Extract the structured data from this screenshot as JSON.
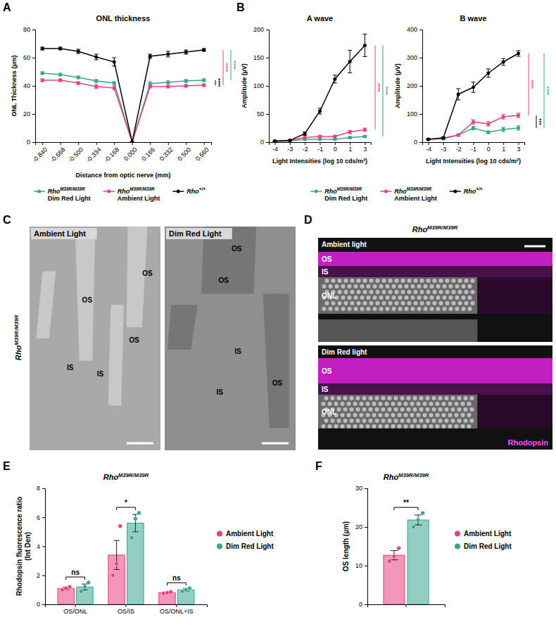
{
  "chart_data": [
    {
      "type": "line",
      "panel": "A",
      "title": "ONL thickness",
      "x_label": "Distance from optic nerve (mm)",
      "y_label": "ONL Thickness (µm)",
      "categories": [
        "-0.840",
        "-0.668",
        "-0.500",
        "-0.334",
        "-0.168",
        "0.000",
        "0.166",
        "0.332",
        "0.500",
        "0.660"
      ],
      "ylim": [
        0,
        80
      ],
      "yticks": [
        0,
        20,
        40,
        60,
        80
      ],
      "legend": "bottom",
      "series": [
        {
          "name": "RhoM39R/M39R Dim Red Light",
          "color": "#3aa58f",
          "marker": "circle",
          "values": [
            49,
            48,
            46,
            43.5,
            42,
            0,
            41.5,
            42.5,
            43.5,
            44
          ],
          "errors": [
            1,
            1,
            1,
            1,
            1,
            0,
            1.5,
            1,
            1,
            1
          ]
        },
        {
          "name": "RhoM39R/M39R Ambient Light",
          "color": "#e8417e",
          "marker": "circle",
          "values": [
            44,
            44,
            42,
            39.5,
            38.5,
            0,
            39.5,
            39.5,
            40,
            40.5
          ],
          "errors": [
            1,
            1,
            1,
            1.5,
            1.5,
            0,
            1,
            1,
            1,
            1
          ]
        },
        {
          "name": "Rho+/+",
          "color": "#000000",
          "marker": "circle",
          "values": [
            66.5,
            66.5,
            64.5,
            60.5,
            57,
            0,
            61,
            62.5,
            64,
            65.5
          ],
          "errors": [
            1,
            1,
            1.5,
            2,
            3,
            0,
            1.5,
            2,
            1.5,
            1
          ]
        }
      ],
      "significance": [
        "****",
        "****",
        "****"
      ]
    },
    {
      "type": "line",
      "panel": "B",
      "title": "A wave",
      "x_label": "Light Intensities (log 10 cds/m²)",
      "y_label": "Amplitude (µV)",
      "categories": [
        "-4",
        "-3",
        "-2",
        "-1",
        "0",
        "1",
        "3"
      ],
      "ylim": [
        0,
        200
      ],
      "yticks": [
        0,
        50,
        100,
        150,
        200
      ],
      "legend": "bottom",
      "series": [
        {
          "name": "RhoM39R/M39R Dim Red Light",
          "color": "#3aa58f",
          "marker": "circle",
          "values": [
            1,
            2,
            5,
            5,
            5,
            8,
            10
          ],
          "errors": [
            0.5,
            0.5,
            1,
            1,
            1,
            2,
            2
          ]
        },
        {
          "name": "RhoM39R/M39R Ambient Light",
          "color": "#e8417e",
          "marker": "circle",
          "values": [
            2,
            3,
            8,
            10,
            10,
            18,
            22
          ],
          "errors": [
            0.5,
            0.5,
            1,
            2,
            2,
            3,
            3
          ]
        },
        {
          "name": "Rho+/+",
          "color": "#000000",
          "marker": "circle",
          "values": [
            2,
            3,
            15,
            55,
            112,
            143,
            172
          ],
          "errors": [
            0.5,
            1,
            3,
            5,
            7,
            20,
            20
          ]
        }
      ],
      "significance": [
        "****",
        "****"
      ]
    },
    {
      "type": "line",
      "title": "B wave",
      "x_label": "Light Intensities (log 10 cds/m²)",
      "y_label": "Amplitude (µV)",
      "categories": [
        "-4",
        "-3",
        "-2",
        "-1",
        "0",
        "1",
        "3"
      ],
      "ylim": [
        0,
        400
      ],
      "yticks": [
        0,
        100,
        200,
        300,
        400
      ],
      "series": [
        {
          "color": "#3aa58f",
          "marker": "circle",
          "values": [
            10,
            12,
            25,
            50,
            35,
            45,
            50
          ],
          "errors": [
            2,
            2,
            4,
            6,
            5,
            8,
            8
          ]
        },
        {
          "color": "#e8417e",
          "marker": "circle",
          "values": [
            10,
            15,
            25,
            72,
            65,
            90,
            95
          ],
          "errors": [
            2,
            2,
            4,
            8,
            8,
            8,
            8
          ]
        },
        {
          "color": "#000000",
          "marker": "circle",
          "values": [
            10,
            15,
            170,
            195,
            245,
            285,
            315
          ],
          "errors": [
            2,
            3,
            20,
            18,
            15,
            12,
            10
          ]
        }
      ],
      "significance": [
        "****",
        "***",
        "****"
      ]
    },
    {
      "type": "bar",
      "panel": "E",
      "title": "RhoM39R/M39R",
      "y_label": "Rhodopsin fluorescence ratio (Int Den)",
      "categories": [
        "OS/ONL",
        "OS/IS",
        "OS/ONL+IS"
      ],
      "ylim": [
        0,
        8
      ],
      "yticks": [
        0,
        2,
        4,
        6,
        8
      ],
      "legend": "right",
      "series": [
        {
          "name": "Ambient Light",
          "color": "#e8417e",
          "values": [
            1.1,
            3.4,
            0.8
          ],
          "errors": [
            0.1,
            1.0,
            0.05
          ],
          "points": [
            [
              1.0,
              1.1,
              1.2
            ],
            [
              2.0,
              2.8,
              5.4
            ],
            [
              0.75,
              0.8,
              0.85
            ]
          ]
        },
        {
          "name": "Dim Red Light",
          "color": "#3aa58f",
          "values": [
            1.2,
            5.6,
            1.0
          ],
          "errors": [
            0.2,
            0.6,
            0.1
          ],
          "points": [
            [
              0.9,
              1.2,
              1.5
            ],
            [
              4.6,
              5.9,
              6.3
            ],
            [
              0.9,
              1.0,
              1.1
            ]
          ]
        }
      ],
      "significance": [
        "ns",
        "*",
        "ns"
      ]
    },
    {
      "type": "bar",
      "panel": "F",
      "title": "RhoM39R/M39R",
      "y_label": "OS length (µm)",
      "categories": [
        null
      ],
      "ylim": [
        0,
        30
      ],
      "yticks": [
        0,
        10,
        20,
        30
      ],
      "legend": "right",
      "series": [
        {
          "name": "Ambient Light",
          "color": "#e8417e",
          "values": [
            12.7
          ],
          "errors": [
            1.2
          ],
          "points": [
            [
              11.2,
              12.4,
              14.5
            ]
          ]
        },
        {
          "name": "Dim Red Light",
          "color": "#3aa58f",
          "values": [
            21.8
          ],
          "errors": [
            1.3
          ],
          "points": [
            [
              20.0,
              21.8,
              23.6
            ]
          ]
        }
      ],
      "significance": [
        "**"
      ]
    }
  ],
  "images": [
    {
      "panel": "C",
      "label": "RhoM39R/M39R",
      "panels": [
        {
          "title": "Ambient Light",
          "labels": [
            "OS",
            "OS",
            "OS",
            "IS",
            "IS"
          ]
        },
        {
          "title": "Dim Red Light",
          "labels": [
            "OS",
            "OS",
            "IS",
            "IS",
            "OS"
          ]
        }
      ]
    },
    {
      "panel": "D",
      "title": "RhoM39R/M39R",
      "stain": "Rhodopsin",
      "panels": [
        {
          "title": "Ambient light",
          "labels": [
            "OS",
            "IS",
            "ONL"
          ]
        },
        {
          "title": "Dim Red light",
          "labels": [
            "OS",
            "IS",
            "ONL"
          ]
        }
      ]
    }
  ]
}
